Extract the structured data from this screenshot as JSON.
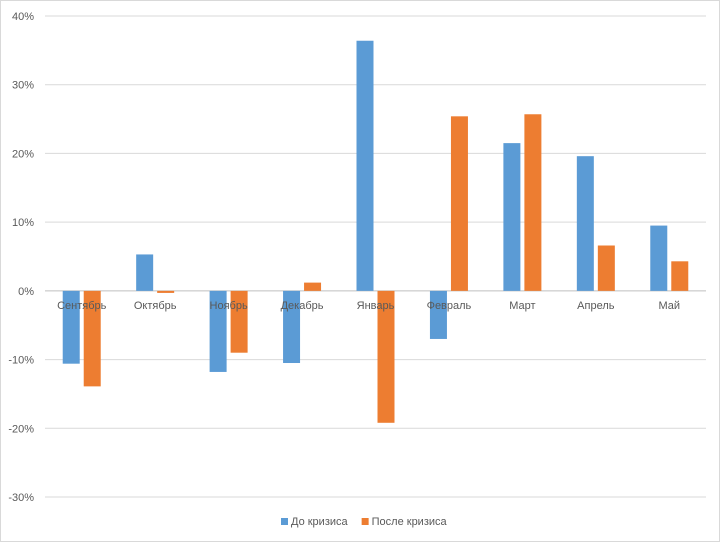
{
  "chart_data": {
    "type": "bar",
    "title": "",
    "xlabel": "",
    "ylabel": "",
    "categories": [
      "Сентябрь",
      "Октябрь",
      "Ноябрь",
      "Декабрь",
      "Январь",
      "Февраль",
      "Март",
      "Апрель",
      "Май"
    ],
    "series": [
      {
        "name": "До кризиса",
        "color": "#5b9bd5",
        "values": [
          -10.6,
          5.3,
          -11.8,
          -10.5,
          36.4,
          -7.0,
          21.5,
          19.6,
          9.5
        ]
      },
      {
        "name": "После кризиса",
        "color": "#ed7d31",
        "values": [
          -13.9,
          -0.3,
          -9.0,
          1.2,
          -19.2,
          25.4,
          25.7,
          6.6,
          4.3
        ]
      }
    ],
    "ylim": [
      -30,
      40
    ],
    "yticks": [
      40,
      30,
      20,
      10,
      0,
      -10,
      -20,
      -30
    ],
    "ytick_labels": [
      "40%",
      "30%",
      "20%",
      "10%",
      "0%",
      "-10%",
      "-20%",
      "-30%"
    ],
    "grid": true,
    "legend_position": "bottom"
  }
}
